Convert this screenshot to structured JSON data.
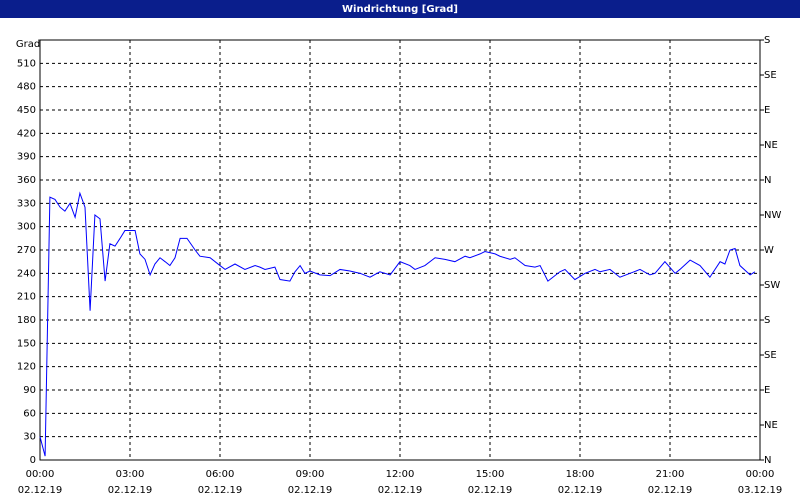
{
  "chart_data": {
    "type": "line",
    "title": "Windrichtung [Grad]",
    "y_label": "Grad",
    "x": [
      0,
      0.17,
      0.33,
      0.5,
      0.67,
      0.83,
      1,
      1.17,
      1.33,
      1.5,
      1.67,
      1.83,
      2,
      2.17,
      2.33,
      2.5,
      2.67,
      2.83,
      3.17,
      3.33,
      3.5,
      3.67,
      3.83,
      4,
      4.17,
      4.33,
      4.5,
      4.67,
      4.9,
      5.17,
      5.33,
      5.67,
      6,
      6.17,
      6.5,
      6.83,
      7.17,
      7.33,
      7.5,
      7.83,
      8,
      8.33,
      8.5,
      8.67,
      8.83,
      9,
      9.33,
      9.67,
      10,
      10.33,
      10.67,
      11,
      11.33,
      11.67,
      12,
      12.33,
      12.5,
      12.83,
      13.17,
      13.5,
      13.83,
      14.17,
      14.33,
      14.67,
      14.83,
      15.17,
      15.33,
      15.67,
      15.83,
      16.17,
      16.5,
      16.67,
      16.93,
      17.33,
      17.5,
      17.83,
      18.17,
      18.5,
      18.67,
      19,
      19.33,
      19.67,
      20,
      20.33,
      20.5,
      20.83,
      21.17,
      21.33,
      21.67,
      22,
      22.33,
      22.67,
      22.83,
      23,
      23.17,
      23.33,
      23.67,
      23.83
    ],
    "series": [
      {
        "color": "#0000ff",
        "values": [
          30,
          5,
          338,
          335,
          325,
          320,
          330,
          312,
          343,
          325,
          192,
          315,
          310,
          230,
          278,
          275,
          285,
          295,
          295,
          265,
          258,
          238,
          252,
          260,
          255,
          250,
          260,
          285,
          285,
          270,
          262,
          260,
          250,
          245,
          252,
          245,
          250,
          248,
          245,
          248,
          232,
          230,
          242,
          250,
          240,
          243,
          238,
          237,
          245,
          243,
          240,
          235,
          242,
          238,
          255,
          250,
          245,
          250,
          260,
          258,
          255,
          262,
          260,
          265,
          268,
          265,
          262,
          258,
          260,
          250,
          248,
          250,
          230,
          242,
          245,
          232,
          240,
          245,
          242,
          245,
          235,
          240,
          245,
          238,
          240,
          255,
          240,
          245,
          257,
          250,
          235,
          255,
          252,
          270,
          272,
          250,
          238,
          242
        ]
      }
    ],
    "xlim": [
      0,
      24
    ],
    "xticks": [
      {
        "value": 0,
        "label": "00:00",
        "date": "02.12.19"
      },
      {
        "value": 3,
        "label": "03:00",
        "date": "02.12.19"
      },
      {
        "value": 6,
        "label": "06:00",
        "date": "02.12.19"
      },
      {
        "value": 9,
        "label": "09:00",
        "date": "02.12.19"
      },
      {
        "value": 12,
        "label": "12:00",
        "date": "02.12.19"
      },
      {
        "value": 15,
        "label": "15:00",
        "date": "02.12.19"
      },
      {
        "value": 18,
        "label": "18:00",
        "date": "02.12.19"
      },
      {
        "value": 21,
        "label": "21:00",
        "date": "02.12.19"
      },
      {
        "value": 24,
        "label": "00:00",
        "date": "03.12.19"
      }
    ],
    "ylim": [
      0,
      540
    ],
    "yticks": [
      0,
      30,
      60,
      90,
      120,
      150,
      180,
      210,
      240,
      270,
      300,
      330,
      360,
      390,
      420,
      450,
      480,
      510
    ],
    "y2lim": [
      0,
      540
    ],
    "y2ticks": [
      {
        "value": 0,
        "label": "N"
      },
      {
        "value": 45,
        "label": "NE"
      },
      {
        "value": 90,
        "label": "E"
      },
      {
        "value": 135,
        "label": "SE"
      },
      {
        "value": 180,
        "label": "S"
      },
      {
        "value": 225,
        "label": "SW"
      },
      {
        "value": 270,
        "label": "W"
      },
      {
        "value": 315,
        "label": "NW"
      },
      {
        "value": 360,
        "label": "N"
      },
      {
        "value": 405,
        "label": "NE"
      },
      {
        "value": 450,
        "label": "E"
      },
      {
        "value": 495,
        "label": "SE"
      },
      {
        "value": 540,
        "label": "S"
      }
    ],
    "grid": true
  }
}
